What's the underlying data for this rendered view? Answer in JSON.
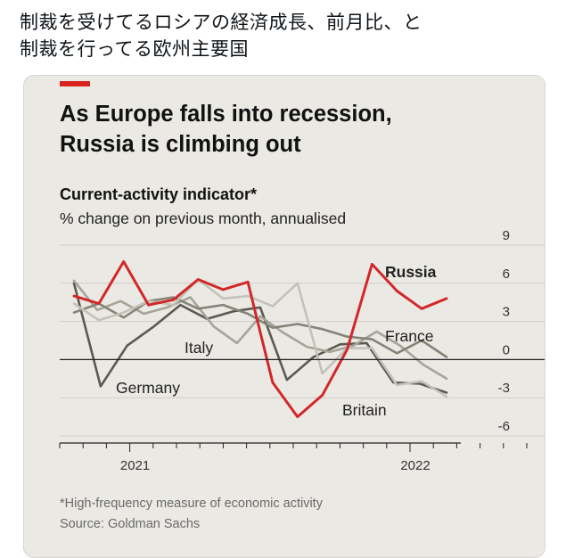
{
  "tweet": {
    "line1": "制裁を受けてるロシアの経済成長、前月比、と",
    "line2": "制裁を行ってる欧州主要国"
  },
  "card": {
    "headline_line1": "As Europe falls into recession,",
    "headline_line2": "Russia is climbing out",
    "subtitle": "Current-activity indicator*",
    "unit": "% change on previous month, annualised",
    "footnote": "*High-frequency measure of economic activity",
    "source": "Source: Goldman Sachs"
  },
  "colors": {
    "russia": "#d2282a",
    "other_series": [
      "#5a5a50",
      "#848478",
      "#a4a498",
      "#c2c2b8"
    ],
    "card_background": "#ebe9e4",
    "accent": "#d9231f"
  },
  "chart_data": {
    "type": "line",
    "title": "Current-activity indicator*",
    "ylabel": "% change on previous month, annualised",
    "ylim": [
      -6,
      9
    ],
    "yticks": [
      9,
      6,
      3,
      0,
      -3,
      -6
    ],
    "ytick_labels": [
      "9",
      "6",
      "3",
      "0",
      "-3",
      "-6"
    ],
    "x_tick_labels": [
      "2021",
      "2022"
    ],
    "x_months": [
      "2020-10",
      "2020-11",
      "2020-12",
      "2021-01",
      "2021-02",
      "2021-03",
      "2021-04",
      "2021-05",
      "2021-06",
      "2021-07",
      "2021-08",
      "2021-09",
      "2021-10",
      "2021-11",
      "2021-12",
      "2022-01",
      "2022-02",
      "2022-03",
      "2022-04",
      "2022-05",
      "2022-06"
    ],
    "grid": true,
    "series": [
      {
        "name": "Russia",
        "values": [
          5.0,
          4.4,
          7.7,
          4.3,
          4.7,
          6.3,
          5.5,
          6.1,
          -1.8,
          -4.5,
          -2.8,
          0.8,
          7.5,
          5.4,
          4.0,
          4.8
        ]
      },
      {
        "name": "Germany",
        "values": [
          6.0,
          -2.1,
          1.1,
          2.6,
          4.3,
          3.2,
          3.8,
          4.1,
          -1.6,
          0.2,
          1.2,
          1.3,
          -1.8,
          -1.9,
          -2.6
        ]
      },
      {
        "name": "Italy",
        "values": [
          6.2,
          3.9,
          4.6,
          3.6,
          4.1,
          4.9,
          2.6,
          1.3,
          3.4,
          2.1,
          1.0,
          0.6,
          1.1,
          2.2,
          1.1,
          -0.4,
          -1.5
        ]
      },
      {
        "name": "France",
        "values": [
          3.7,
          4.4,
          3.3,
          4.6,
          4.9,
          4.0,
          4.3,
          3.6,
          2.5,
          2.8,
          2.4,
          1.8,
          1.6,
          0.5,
          1.5,
          0.2
        ]
      },
      {
        "name": "Britain",
        "values": [
          4.4,
          3.1,
          3.7,
          4.6,
          4.3,
          6.3,
          4.8,
          5.0,
          4.2,
          6.0,
          -1.1,
          0.9,
          0.9,
          -2.0,
          -1.7,
          -2.9
        ]
      }
    ]
  }
}
